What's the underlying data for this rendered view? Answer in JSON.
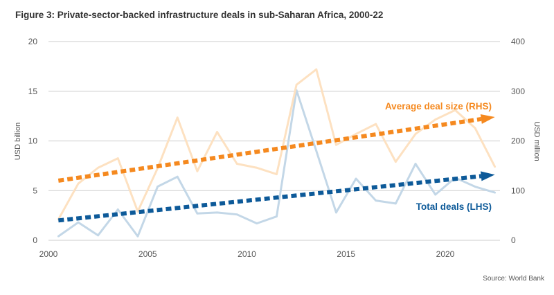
{
  "title": "Figure 3: Private-sector-backed infrastructure deals in sub-Saharan Africa, 2000-22",
  "source": "Source: World Bank",
  "chart_data": {
    "type": "line",
    "x": [
      2000,
      2001,
      2002,
      2003,
      2004,
      2005,
      2006,
      2007,
      2008,
      2009,
      2010,
      2011,
      2012,
      2013,
      2014,
      2015,
      2016,
      2017,
      2018,
      2019,
      2020,
      2021,
      2022
    ],
    "series": [
      {
        "name": "Total deals (LHS)",
        "axis": "left",
        "color": "#c3d7e7",
        "values": [
          0.4,
          1.8,
          0.5,
          3.1,
          0.4,
          5.4,
          6.4,
          2.7,
          2.8,
          2.6,
          1.7,
          2.4,
          15.1,
          9.0,
          2.8,
          6.2,
          4.0,
          3.7,
          7.7,
          4.6,
          6.3,
          5.4,
          4.8
        ]
      },
      {
        "name": "Average deal size (RHS)",
        "axis": "right",
        "color": "#fde1c1",
        "values": [
          42,
          114,
          146,
          165,
          58,
          145,
          247,
          139,
          218,
          154,
          146,
          133,
          313,
          344,
          192,
          214,
          234,
          158,
          214,
          243,
          262,
          226,
          148
        ]
      }
    ],
    "trends": [
      {
        "label": "Average deal size (RHS)",
        "axis": "right",
        "color": "#f5891f",
        "start": [
          2000,
          120
        ],
        "end": [
          2022,
          248
        ]
      },
      {
        "label": "Total deals (LHS)",
        "axis": "left",
        "color": "#0d5a99",
        "start": [
          2000,
          2.0
        ],
        "end": [
          2022,
          6.6
        ]
      }
    ],
    "ylabel_left": "USD billion",
    "ylabel_right": "USD million",
    "ylim_left": [
      0,
      20
    ],
    "ylim_right": [
      0,
      400
    ],
    "yticks_left": [
      "0",
      "5",
      "10",
      "15",
      "20"
    ],
    "yticks_right": [
      "0",
      "100",
      "200",
      "300",
      "400"
    ],
    "xticks": [
      "2000",
      "2005",
      "2010",
      "2015",
      "2020"
    ],
    "grid": true
  }
}
